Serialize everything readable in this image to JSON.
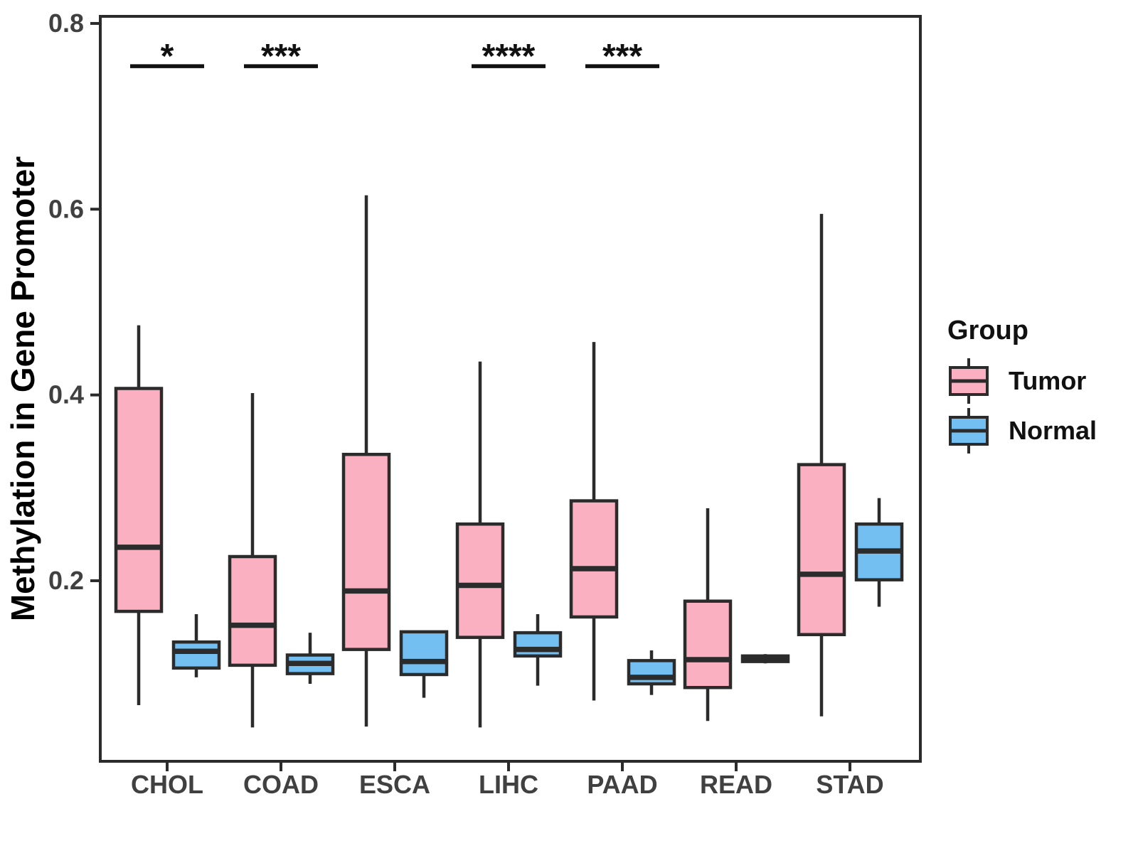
{
  "figure": {
    "ylabel": "Methylation in Gene Promoter"
  },
  "legend": {
    "title": "Group",
    "entries": [
      {
        "label": "Tumor",
        "color": "#FBB0C2"
      },
      {
        "label": "Normal",
        "color": "#74BFF2"
      }
    ]
  },
  "colors": {
    "tumor_fill": "#FBB0C2",
    "normal_fill": "#74BFF2",
    "box_stroke": "#2B2B2B",
    "panel_border": "#2B2B2B",
    "tick_text": "#404040",
    "sig_color": "#111111"
  },
  "chart_data": {
    "type": "boxplot",
    "title": "",
    "xlabel": "",
    "ylabel": "Methylation in Gene Promoter",
    "categories": [
      "CHOL",
      "COAD",
      "ESCA",
      "LIHC",
      "PAAD",
      "READ",
      "STAD"
    ],
    "yticks": [
      0.2,
      0.4,
      0.6,
      0.8
    ],
    "ytick_labels": [
      "0.2",
      "0.4",
      "0.6",
      "0.8"
    ],
    "ylim": [
      0,
      0.808
    ],
    "grid": false,
    "legend_position": "right",
    "legend_title": "Group",
    "series": [
      {
        "name": "Tumor",
        "color": "#FBB0C2",
        "boxes": [
          {
            "category": "CHOL",
            "min": 0.066,
            "q1": 0.167,
            "median": 0.236,
            "q3": 0.407,
            "max": 0.475
          },
          {
            "category": "COAD",
            "min": 0.042,
            "q1": 0.109,
            "median": 0.152,
            "q3": 0.226,
            "max": 0.402
          },
          {
            "category": "ESCA",
            "min": 0.043,
            "q1": 0.126,
            "median": 0.189,
            "q3": 0.336,
            "max": 0.615
          },
          {
            "category": "LIHC",
            "min": 0.042,
            "q1": 0.139,
            "median": 0.195,
            "q3": 0.261,
            "max": 0.436
          },
          {
            "category": "PAAD",
            "min": 0.071,
            "q1": 0.161,
            "median": 0.213,
            "q3": 0.286,
            "max": 0.457
          },
          {
            "category": "READ",
            "min": 0.049,
            "q1": 0.085,
            "median": 0.115,
            "q3": 0.178,
            "max": 0.278
          },
          {
            "category": "STAD",
            "min": 0.054,
            "q1": 0.142,
            "median": 0.207,
            "q3": 0.325,
            "max": 0.595
          }
        ]
      },
      {
        "name": "Normal",
        "color": "#74BFF2",
        "boxes": [
          {
            "category": "CHOL",
            "min": 0.096,
            "q1": 0.106,
            "median": 0.124,
            "q3": 0.134,
            "max": 0.164
          },
          {
            "category": "COAD",
            "min": 0.089,
            "q1": 0.1,
            "median": 0.111,
            "q3": 0.12,
            "max": 0.144
          },
          {
            "category": "ESCA",
            "min": 0.074,
            "q1": 0.099,
            "median": 0.113,
            "q3": 0.145,
            "max": 0.145
          },
          {
            "category": "LIHC",
            "min": 0.087,
            "q1": 0.119,
            "median": 0.126,
            "q3": 0.144,
            "max": 0.164
          },
          {
            "category": "PAAD",
            "min": 0.077,
            "q1": 0.089,
            "median": 0.096,
            "q3": 0.114,
            "max": 0.125
          },
          {
            "category": "READ",
            "min": 0.111,
            "q1": 0.113,
            "median": 0.116,
            "q3": 0.119,
            "max": 0.121
          },
          {
            "category": "STAD",
            "min": 0.172,
            "q1": 0.201,
            "median": 0.232,
            "q3": 0.261,
            "max": 0.289
          }
        ]
      }
    ],
    "significance": [
      {
        "category": "CHOL",
        "label": "*",
        "y": 0.754
      },
      {
        "category": "COAD",
        "label": "***",
        "y": 0.754
      },
      {
        "category": "LIHC",
        "label": "****",
        "y": 0.754
      },
      {
        "category": "PAAD",
        "label": "***",
        "y": 0.754
      }
    ]
  }
}
